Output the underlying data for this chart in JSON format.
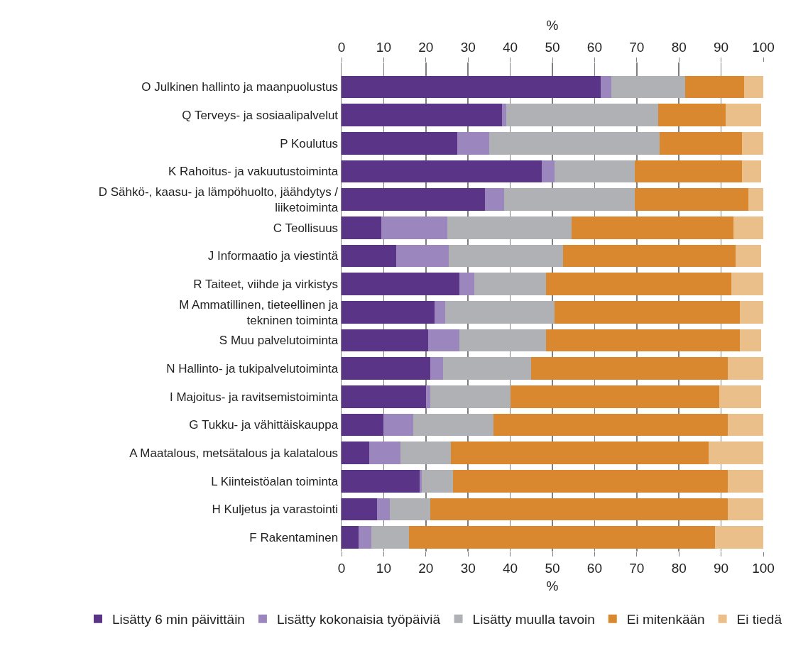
{
  "chart_data": {
    "type": "bar",
    "orientation": "horizontal",
    "stacked": true,
    "categories": [
      "O Julkinen hallinto ja maanpuolustus",
      "Q Terveys- ja sosiaalipalvelut",
      "P Koulutus",
      "K Rahoitus- ja vakuutustoiminta",
      "D Sähkö-, kaasu- ja lämpöhuolto, jäähdytys /\nliiketoiminta",
      "C Teollisuus",
      "J Informaatio ja viestintä",
      "R Taiteet, viihde ja virkistys",
      "M Ammatillinen, tieteellinen ja\ntekninen toiminta",
      "S Muu palvelutoiminta",
      "N Hallinto- ja tukipalvelutoiminta",
      "I Majoitus- ja ravitsemistoiminta",
      "G Tukku- ja vähittäiskauppa",
      "A Maatalous, metsätalous ja kalatalous",
      "L Kiinteistöalan toiminta",
      "H Kuljetus ja varastointi",
      "F Rakentaminen"
    ],
    "series": [
      {
        "name": "Lisätty 6 min päivittäin",
        "color": "#5a3486",
        "values": [
          61.5,
          38,
          27.5,
          47.5,
          34,
          9.5,
          13,
          28,
          22,
          20.5,
          21,
          20,
          10,
          6.5,
          18.5,
          8.5,
          4
        ]
      },
      {
        "name": "Lisätty kokonaisia työpäiviä",
        "color": "#9b87bd",
        "values": [
          2.5,
          1,
          7.5,
          3,
          4.5,
          15.5,
          12.5,
          3.5,
          2.5,
          7.5,
          3,
          1,
          7,
          7.5,
          0.5,
          3,
          3
        ]
      },
      {
        "name": "Lisätty muulla tavoin",
        "color": "#b0b1b4",
        "values": [
          17.5,
          36,
          40.5,
          19,
          31,
          29.5,
          27,
          17,
          26,
          20.5,
          21,
          19,
          19,
          12,
          7.5,
          9.5,
          9
        ]
      },
      {
        "name": "Ei mitenkään",
        "color": "#d98830",
        "values": [
          14,
          16,
          19.5,
          25.5,
          27,
          38.5,
          41,
          44,
          44,
          46,
          46.5,
          49.5,
          55.5,
          61,
          65,
          70.5,
          72.5
        ]
      },
      {
        "name": "Ei tiedä",
        "color": "#ebbf8a",
        "values": [
          4.5,
          8.5,
          5,
          4.5,
          3.5,
          7,
          6,
          7.5,
          5.5,
          5,
          8.5,
          10,
          8.5,
          13,
          8.5,
          8.5,
          11.5
        ]
      }
    ],
    "xlim": [
      0,
      100
    ],
    "xticks": [
      0,
      10,
      20,
      30,
      40,
      50,
      60,
      70,
      80,
      90,
      100
    ],
    "xlabel": "%",
    "x2lim": [
      0,
      100
    ],
    "x2ticks": [
      0,
      10,
      20,
      30,
      40,
      50,
      60,
      70,
      80,
      90,
      100
    ],
    "x2label": "%",
    "grid": "x",
    "legend": "bottom"
  }
}
